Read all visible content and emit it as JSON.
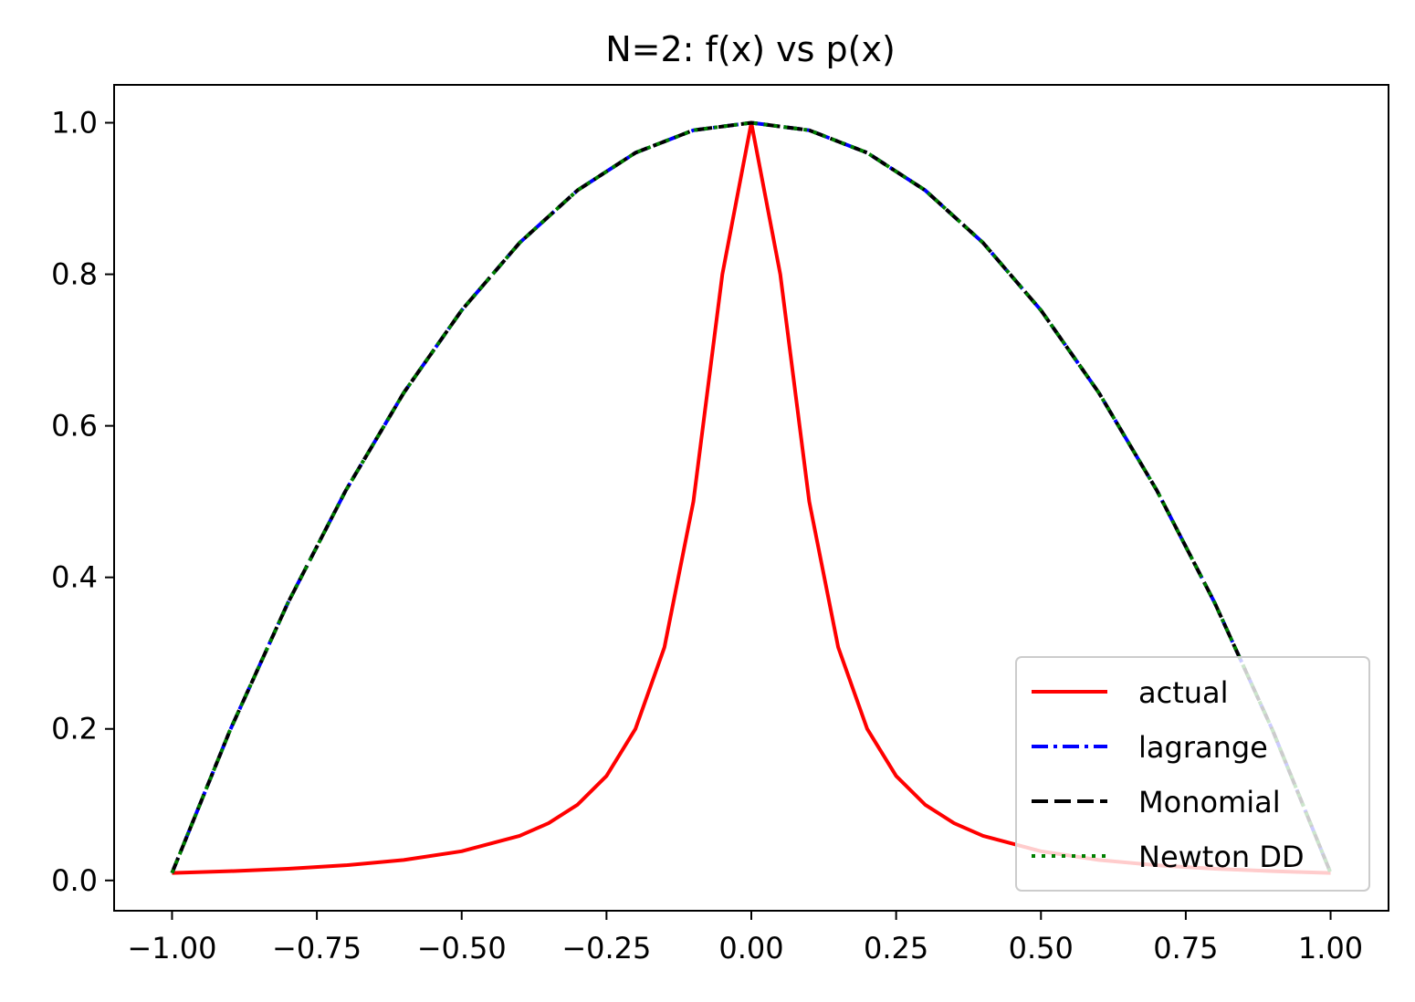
{
  "chart_data": {
    "type": "line",
    "title": "N=2: f(x) vs p(x)",
    "xlabel": "",
    "ylabel": "",
    "xlim": [
      -1.1,
      1.1
    ],
    "ylim": [
      -0.04,
      1.05
    ],
    "x_ticks": [
      -1.0,
      -0.75,
      -0.5,
      -0.25,
      0.0,
      0.25,
      0.5,
      0.75,
      1.0
    ],
    "x_tick_labels": [
      "−1.00",
      "−0.75",
      "−0.50",
      "−0.25",
      "0.00",
      "0.25",
      "0.50",
      "0.75",
      "1.00"
    ],
    "y_ticks": [
      0.0,
      0.2,
      0.4,
      0.6,
      0.8,
      1.0
    ],
    "y_tick_labels": [
      "0.0",
      "0.2",
      "0.4",
      "0.6",
      "0.8",
      "1.0"
    ],
    "grid": false,
    "legend_position": "lower-right",
    "series": [
      {
        "name": "actual",
        "color": "#ff0000",
        "style": "solid",
        "x": [
          -1.0,
          -0.9,
          -0.8,
          -0.7,
          -0.6,
          -0.5,
          -0.4,
          -0.35,
          -0.3,
          -0.25,
          -0.2,
          -0.15,
          -0.1,
          -0.05,
          0.0,
          0.05,
          0.1,
          0.15,
          0.2,
          0.25,
          0.3,
          0.35,
          0.4,
          0.5,
          0.6,
          0.7,
          0.8,
          0.9,
          1.0
        ],
        "y": [
          0.0099,
          0.0122,
          0.0154,
          0.02,
          0.027,
          0.0385,
          0.0588,
          0.0755,
          0.1,
          0.1379,
          0.2,
          0.3077,
          0.5,
          0.8,
          1.0,
          0.8,
          0.5,
          0.3077,
          0.2,
          0.1379,
          0.1,
          0.0755,
          0.0588,
          0.0385,
          0.027,
          0.02,
          0.0154,
          0.0122,
          0.0099
        ]
      },
      {
        "name": "lagrange",
        "color": "#0000ff",
        "style": "dashdot",
        "x": [
          -1.0,
          -0.9,
          -0.8,
          -0.7,
          -0.6,
          -0.5,
          -0.4,
          -0.3,
          -0.2,
          -0.1,
          0.0,
          0.1,
          0.2,
          0.3,
          0.4,
          0.5,
          0.6,
          0.7,
          0.8,
          0.9,
          1.0
        ],
        "y": [
          0.0099,
          0.198,
          0.3663,
          0.5148,
          0.6436,
          0.7525,
          0.8416,
          0.9109,
          0.9604,
          0.9901,
          1.0,
          0.9901,
          0.9604,
          0.9109,
          0.8416,
          0.7525,
          0.6436,
          0.5148,
          0.3663,
          0.198,
          0.0099
        ]
      },
      {
        "name": "Monomial",
        "color": "#000000",
        "style": "dashed",
        "x": [
          -1.0,
          -0.9,
          -0.8,
          -0.7,
          -0.6,
          -0.5,
          -0.4,
          -0.3,
          -0.2,
          -0.1,
          0.0,
          0.1,
          0.2,
          0.3,
          0.4,
          0.5,
          0.6,
          0.7,
          0.8,
          0.9,
          1.0
        ],
        "y": [
          0.0099,
          0.198,
          0.3663,
          0.5148,
          0.6436,
          0.7525,
          0.8416,
          0.9109,
          0.9604,
          0.9901,
          1.0,
          0.9901,
          0.9604,
          0.9109,
          0.8416,
          0.7525,
          0.6436,
          0.5148,
          0.3663,
          0.198,
          0.0099
        ]
      },
      {
        "name": "Newton DD",
        "color": "#008000",
        "style": "dotted",
        "x": [
          -1.0,
          -0.9,
          -0.8,
          -0.7,
          -0.6,
          -0.5,
          -0.4,
          -0.3,
          -0.2,
          -0.1,
          0.0,
          0.1,
          0.2,
          0.3,
          0.4,
          0.5,
          0.6,
          0.7,
          0.8,
          0.9,
          1.0
        ],
        "y": [
          0.0099,
          0.198,
          0.3663,
          0.5148,
          0.6436,
          0.7525,
          0.8416,
          0.9109,
          0.9604,
          0.9901,
          1.0,
          0.9901,
          0.9604,
          0.9109,
          0.8416,
          0.7525,
          0.6436,
          0.5148,
          0.3663,
          0.198,
          0.0099
        ]
      }
    ]
  }
}
